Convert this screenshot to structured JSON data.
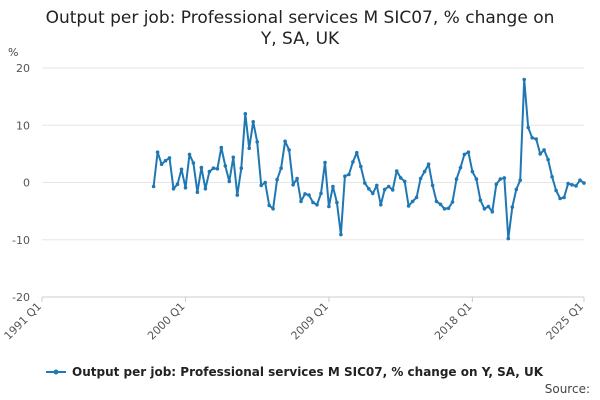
{
  "chart_data": {
    "type": "line",
    "title": "Output per job: Professional services M SIC07, % change on Y, SA, UK",
    "ylabel": "%",
    "xlabel": "",
    "ylim": [
      -20,
      20
    ],
    "y_ticks": [
      20,
      10,
      0,
      -10,
      -20
    ],
    "x_range": [
      "1991 Q1",
      "2025 Q1"
    ],
    "x_ticks": [
      "1991 Q1",
      "2000 Q1",
      "2009 Q1",
      "2018 Q1",
      "2025 Q1"
    ],
    "grid": true,
    "legend_position": "bottom",
    "series": [
      {
        "name": "Output per job: Professional services M SIC07, % change on Y, SA, UK",
        "color": "#1f78b4",
        "x": [
          "1998 Q1",
          "1998 Q2",
          "1998 Q3",
          "1998 Q4",
          "1999 Q1",
          "1999 Q2",
          "1999 Q3",
          "1999 Q4",
          "2000 Q1",
          "2000 Q2",
          "2000 Q3",
          "2000 Q4",
          "2001 Q1",
          "2001 Q2",
          "2001 Q3",
          "2001 Q4",
          "2002 Q1",
          "2002 Q2",
          "2002 Q3",
          "2002 Q4",
          "2003 Q1",
          "2003 Q2",
          "2003 Q3",
          "2003 Q4",
          "2004 Q1",
          "2004 Q2",
          "2004 Q3",
          "2004 Q4",
          "2005 Q1",
          "2005 Q2",
          "2005 Q3",
          "2005 Q4",
          "2006 Q1",
          "2006 Q2",
          "2006 Q3",
          "2006 Q4",
          "2007 Q1",
          "2007 Q2",
          "2007 Q3",
          "2007 Q4",
          "2008 Q1",
          "2008 Q2",
          "2008 Q3",
          "2008 Q4",
          "2009 Q1",
          "2009 Q2",
          "2009 Q3",
          "2009 Q4",
          "2010 Q1",
          "2010 Q2",
          "2010 Q3",
          "2010 Q4",
          "2011 Q1",
          "2011 Q2",
          "2011 Q3",
          "2011 Q4",
          "2012 Q1",
          "2012 Q2",
          "2012 Q3",
          "2012 Q4",
          "2013 Q1",
          "2013 Q2",
          "2013 Q3",
          "2013 Q4",
          "2014 Q1",
          "2014 Q2",
          "2014 Q3",
          "2014 Q4",
          "2015 Q1",
          "2015 Q2",
          "2015 Q3",
          "2015 Q4",
          "2016 Q1",
          "2016 Q2",
          "2016 Q3",
          "2016 Q4",
          "2017 Q1",
          "2017 Q2",
          "2017 Q3",
          "2017 Q4",
          "2018 Q1",
          "2018 Q2",
          "2018 Q3",
          "2018 Q4",
          "2019 Q1",
          "2019 Q2",
          "2019 Q3",
          "2019 Q4",
          "2020 Q1",
          "2020 Q2",
          "2020 Q3",
          "2020 Q4",
          "2021 Q1",
          "2021 Q2",
          "2021 Q3",
          "2021 Q4",
          "2022 Q1",
          "2022 Q2",
          "2022 Q3",
          "2022 Q4",
          "2023 Q1",
          "2023 Q2",
          "2023 Q3",
          "2023 Q4",
          "2024 Q1",
          "2024 Q2",
          "2024 Q3",
          "2024 Q4",
          "2025 Q1"
        ],
        "values": [
          -0.7,
          5.3,
          3.2,
          3.8,
          4.3,
          -1.1,
          -0.3,
          2.3,
          -0.9,
          4.9,
          3.4,
          -1.7,
          2.6,
          -1.1,
          1.9,
          2.5,
          2.4,
          6.1,
          2.9,
          0.2,
          4.4,
          -2.2,
          2.5,
          12.0,
          6.0,
          10.6,
          7.1,
          -0.5,
          0.0,
          -4.0,
          -4.6,
          0.5,
          2.5,
          7.2,
          5.7,
          -0.4,
          0.7,
          -3.3,
          -2.0,
          -2.2,
          -3.5,
          -3.9,
          -1.9,
          3.5,
          -4.2,
          -0.7,
          -3.5,
          -9.1,
          1.1,
          1.4,
          3.6,
          5.2,
          2.8,
          -0.1,
          -1.1,
          -1.9,
          -0.5,
          -3.9,
          -1.2,
          -0.7,
          -1.3,
          2.0,
          0.8,
          0.2,
          -4.1,
          -3.3,
          -2.6,
          0.7,
          1.9,
          3.2,
          -0.5,
          -3.3,
          -3.8,
          -4.6,
          -4.5,
          -3.4,
          0.6,
          2.6,
          4.9,
          5.3,
          1.9,
          0.6,
          -3.1,
          -4.6,
          -4.2,
          -5.1,
          -0.3,
          0.6,
          0.8,
          -9.8,
          -4.3,
          -1.2,
          0.4,
          18.0,
          9.6,
          7.8,
          7.6,
          5.0,
          5.7,
          4.0,
          1.0,
          -1.4,
          -2.8,
          -2.6,
          -0.2,
          -0.4,
          -0.6,
          0.4,
          -0.1
        ]
      }
    ]
  },
  "unit_label": "%",
  "source_label": "Source:"
}
